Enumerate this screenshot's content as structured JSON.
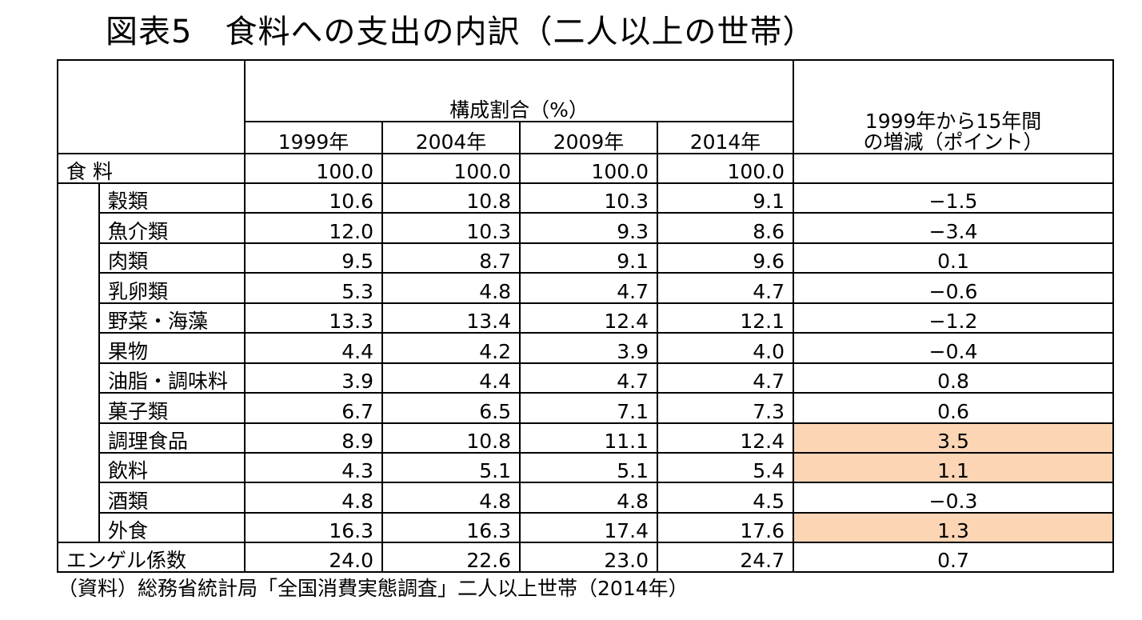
{
  "title": "図表5　食料への支出の内訳（二人以上の世帯）",
  "header": {
    "group_label": "構成割合（%）",
    "years": [
      "1999年",
      "2004年",
      "2009年",
      "2014年"
    ],
    "change_label_line1": "1999年から15年間",
    "change_label_line2": "の増減（ポイント）"
  },
  "total_row": {
    "name": "食 料",
    "values": [
      "100.0",
      "100.0",
      "100.0",
      "100.0"
    ],
    "change": ""
  },
  "rows": [
    {
      "name": "穀類",
      "values": [
        "10.6",
        "10.8",
        "10.3",
        "9.1"
      ],
      "change": "−1.5"
    },
    {
      "name": "魚介類",
      "values": [
        "12.0",
        "10.3",
        "9.3",
        "8.6"
      ],
      "change": "−3.4"
    },
    {
      "name": "肉類",
      "values": [
        "9.5",
        "8.7",
        "9.1",
        "9.6"
      ],
      "change": "0.1"
    },
    {
      "name": "乳卵類",
      "values": [
        "5.3",
        "4.8",
        "4.7",
        "4.7"
      ],
      "change": "−0.6"
    },
    {
      "name": "野菜・海藻",
      "values": [
        "13.3",
        "13.4",
        "12.4",
        "12.1"
      ],
      "change": "−1.2"
    },
    {
      "name": "果物",
      "values": [
        "4.4",
        "4.2",
        "3.9",
        "4.0"
      ],
      "change": "−0.4"
    },
    {
      "name": "油脂・調味料",
      "values": [
        "3.9",
        "4.4",
        "4.7",
        "4.7"
      ],
      "change": "0.8"
    },
    {
      "name": "菓子類",
      "values": [
        "6.7",
        "6.5",
        "7.1",
        "7.3"
      ],
      "change": "0.6"
    },
    {
      "name": "調理食品",
      "values": [
        "8.9",
        "10.8",
        "11.1",
        "12.4"
      ],
      "change": "3.5"
    },
    {
      "name": "飲料",
      "values": [
        "4.3",
        "5.1",
        "5.1",
        "5.4"
      ],
      "change": "1.1"
    },
    {
      "name": "酒類",
      "values": [
        "4.8",
        "4.8",
        "4.8",
        "4.5"
      ],
      "change": "−0.3"
    },
    {
      "name": "外食",
      "values": [
        "16.3",
        "16.3",
        "17.4",
        "17.6"
      ],
      "change": "1.3"
    }
  ],
  "engel_row": {
    "name": "エンゲル係数",
    "values": [
      "24.0",
      "22.6",
      "23.0",
      "24.7"
    ],
    "change": "0.7"
  },
  "highlight_color": "#fcd5b5",
  "source": "（資料）総務省統計局「全国消費実態調査」二人以上世帯（2014年）"
}
